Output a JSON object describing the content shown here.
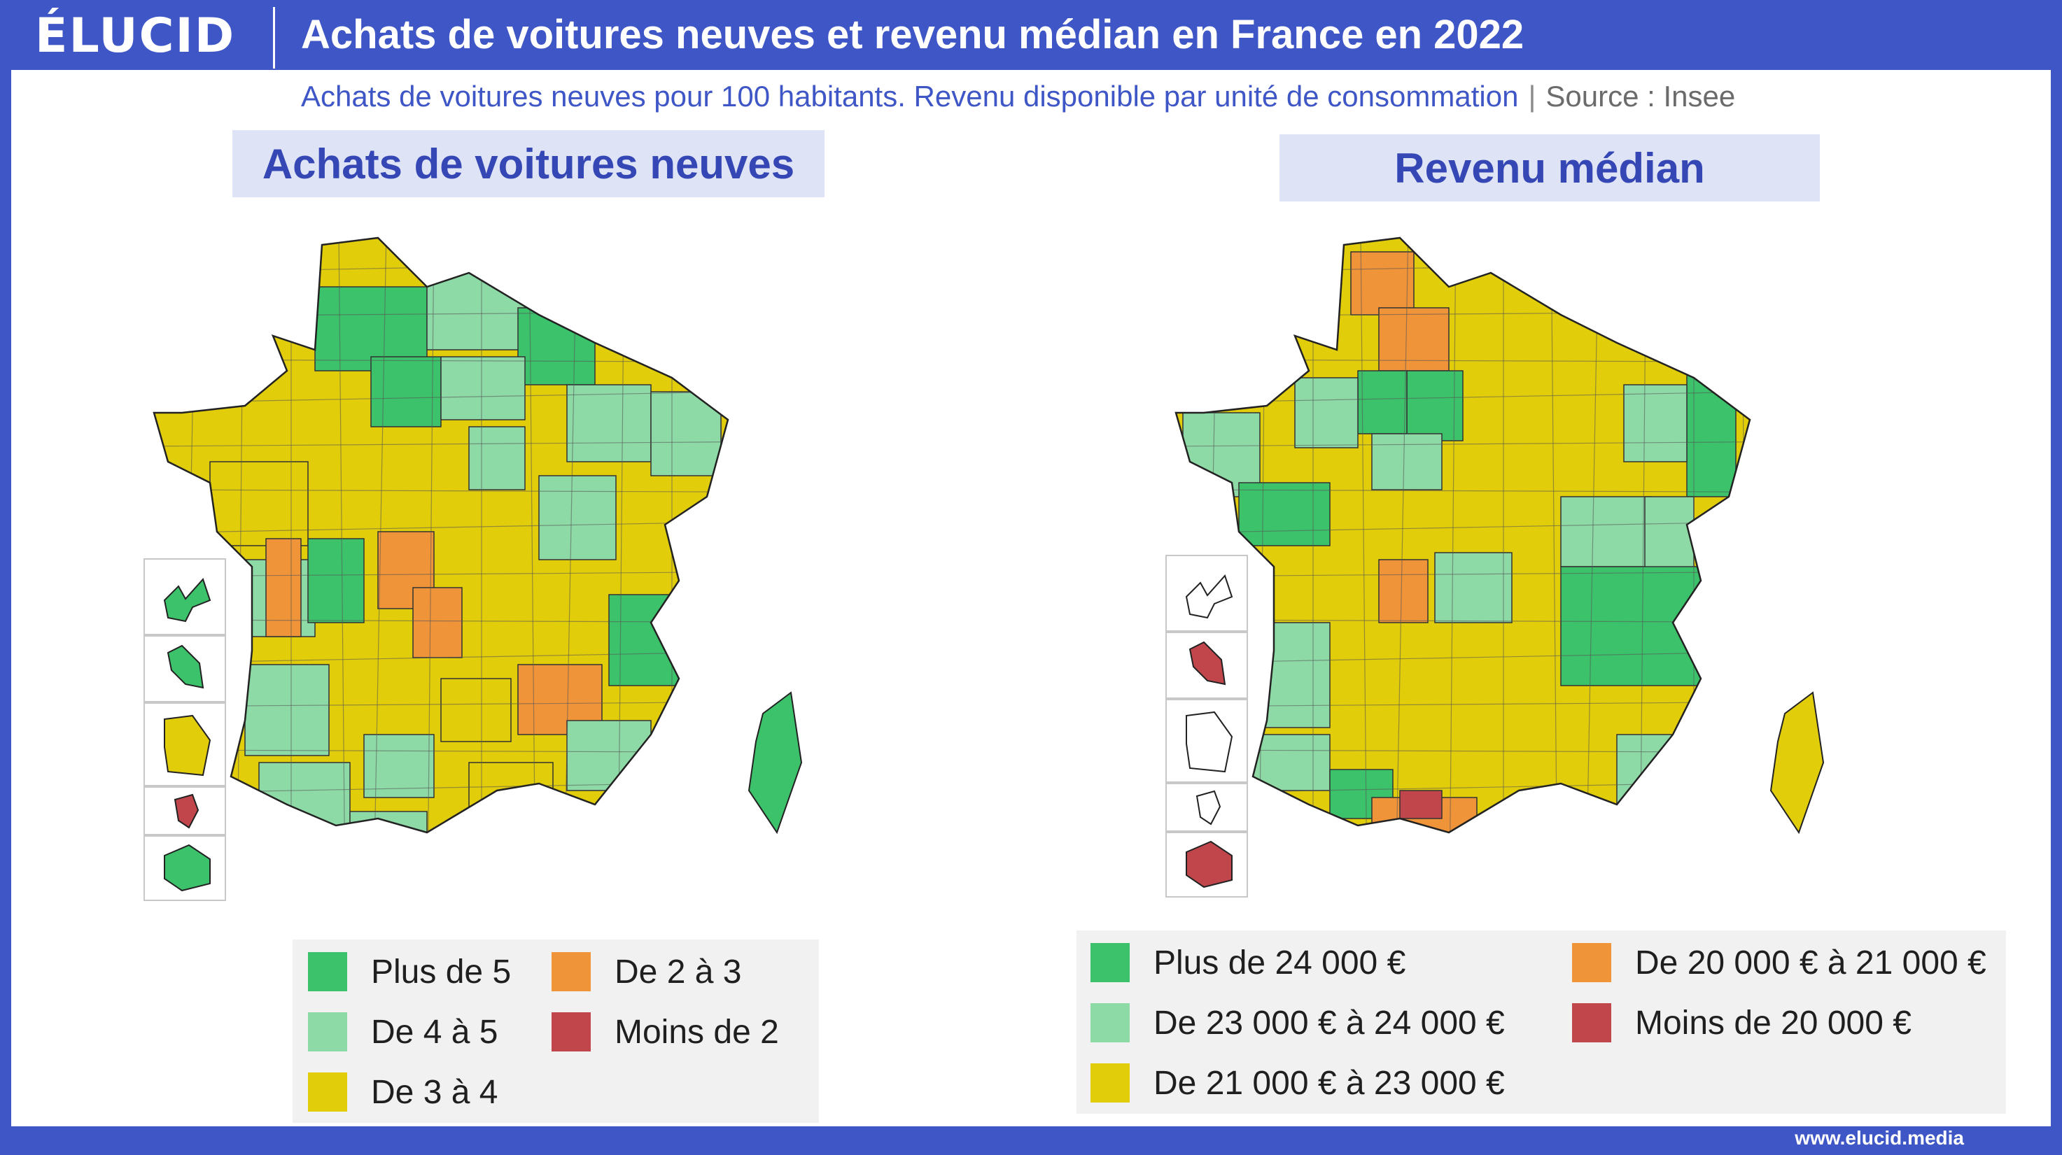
{
  "brand": {
    "logo": "ÉLUCID",
    "website": "www.elucid.media"
  },
  "header": {
    "title": "Achats de voitures neuves et revenu médian en France en 2022",
    "subtitle": "Achats de voitures neuves pour 100 habitants. Revenu disponible par unité de consommation",
    "source": "Source : Insee"
  },
  "colors": {
    "brand_blue": "#3f56c6",
    "dark_green": "#3cc26a",
    "light_green": "#8edaa6",
    "yellow": "#e2cd0a",
    "orange": "#f0943a",
    "red": "#c0464c",
    "white": "#ffffff"
  },
  "map_left": {
    "title": "Achats de voitures neuves",
    "legend": [
      {
        "label": "Plus de 5",
        "color": "#3cc26a"
      },
      {
        "label": "De 4 à 5",
        "color": "#8edaa6"
      },
      {
        "label": "De 3 à 4",
        "color": "#e2cd0a"
      },
      {
        "label": "De 2 à 3",
        "color": "#f0943a"
      },
      {
        "label": "Moins de 2",
        "color": "#c0464c"
      }
    ]
  },
  "map_right": {
    "title": "Revenu médian",
    "legend": [
      {
        "label": "Plus de 24 000 €",
        "color": "#3cc26a"
      },
      {
        "label": "De 23 000 € à 24 000 €",
        "color": "#8edaa6"
      },
      {
        "label": "De 21 000 € à 23 000 €",
        "color": "#e2cd0a"
      },
      {
        "label": "De 20 000 € à 21 000 €",
        "color": "#f0943a"
      },
      {
        "label": "Moins de 20 000 €",
        "color": "#c0464c"
      }
    ]
  }
}
